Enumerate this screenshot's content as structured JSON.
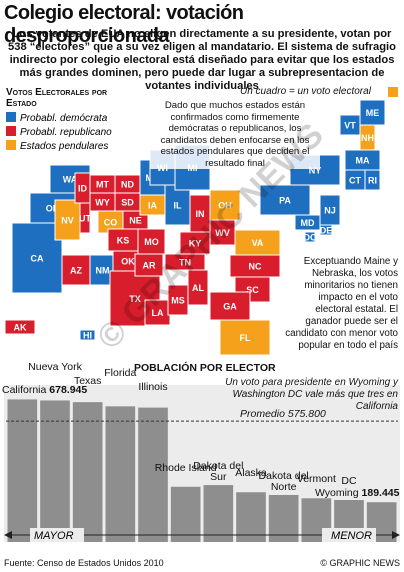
{
  "header": {
    "title": "Colegio electoral: votación desproporcionada",
    "intro": "Los votantes de EUA no eligen directamente a su presidente, votan por 538 “electores” que a su vez eligen al mandatario. El sistema de sufragio indirecto por colegio electoral está diseñado para evitar que los estados más grandes dominen, pero puede dar lugar a subrepresentacion de votantes individuales"
  },
  "legend": {
    "title": "Votos Electorales por Estado",
    "items": [
      {
        "label": "Probabl. demócrata",
        "color": "#1f6fc0"
      },
      {
        "label": "Probabl. republicano",
        "color": "#d81e2c"
      },
      {
        "label": "Estados pendulares",
        "color": "#f5a11c"
      }
    ],
    "square_note": "Un cuadro = un voto electoral"
  },
  "notes": {
    "swing": "Dado que muchos estados están confirmados como firmemente demócratas o republicanos, los candidatos deben enfocarse en los estados pendulares que deciden el resultado final",
    "maine": "Exceptuando Maine y Nebraska, los votos minoritarios no tienen impacto en el voto electoral estatal. El ganador puede ser el candidato con menor voto popular en todo el país"
  },
  "map": {
    "states": [
      {
        "label": "WA",
        "group": 0
      },
      {
        "label": "OR",
        "group": 0
      },
      {
        "label": "CA",
        "group": 0
      },
      {
        "label": "NV",
        "group": 2
      },
      {
        "label": "ID",
        "group": 1
      },
      {
        "label": "MT",
        "group": 1
      },
      {
        "label": "WY",
        "group": 1
      },
      {
        "label": "UT",
        "group": 1
      },
      {
        "label": "CO",
        "group": 2
      },
      {
        "label": "AZ",
        "group": 1
      },
      {
        "label": "NM",
        "group": 0
      },
      {
        "label": "ND",
        "group": 1
      },
      {
        "label": "SD",
        "group": 1
      },
      {
        "label": "NE",
        "group": 1
      },
      {
        "label": "KS",
        "group": 1
      },
      {
        "label": "OK",
        "group": 1
      },
      {
        "label": "TX",
        "group": 1
      },
      {
        "label": "MN",
        "group": 0
      },
      {
        "label": "IA",
        "group": 2
      },
      {
        "label": "MO",
        "group": 1
      },
      {
        "label": "AR",
        "group": 1
      },
      {
        "label": "LA",
        "group": 1
      },
      {
        "label": "WI",
        "group": 0
      },
      {
        "label": "IL",
        "group": 0
      },
      {
        "label": "MS",
        "group": 1
      },
      {
        "label": "AL",
        "group": 1
      },
      {
        "label": "TN",
        "group": 1
      },
      {
        "label": "KY",
        "group": 1
      },
      {
        "label": "IN",
        "group": 1
      },
      {
        "label": "MI",
        "group": 0
      },
      {
        "label": "OH",
        "group": 2
      },
      {
        "label": "WV",
        "group": 1
      },
      {
        "label": "VA",
        "group": 2
      },
      {
        "label": "NC",
        "group": 1
      },
      {
        "label": "SC",
        "group": 1
      },
      {
        "label": "GA",
        "group": 1
      },
      {
        "label": "FL",
        "group": 2
      },
      {
        "label": "PA",
        "group": 0
      },
      {
        "label": "NY",
        "group": 0
      },
      {
        "label": "NJ",
        "group": 0
      },
      {
        "label": "DE",
        "group": 0
      },
      {
        "label": "MD",
        "group": 0
      },
      {
        "label": "DC",
        "group": 0
      },
      {
        "label": "VT",
        "group": 0
      },
      {
        "label": "NH",
        "group": 2
      },
      {
        "label": "ME",
        "group": 0
      },
      {
        "label": "MA",
        "group": 0
      },
      {
        "label": "CT",
        "group": 0
      },
      {
        "label": "RI",
        "group": 0
      },
      {
        "label": "AK",
        "group": 1
      },
      {
        "label": "HI",
        "group": 0
      }
    ]
  },
  "chart_data": {
    "type": "bar",
    "title": "Población por Elector",
    "subtitle": "Un voto para presidente en Wyoming y Washington DC vale más que tres en California",
    "categories": [
      "California",
      "Nueva York",
      "Texas",
      "Florida",
      "Illinois",
      "Rhode Island",
      "Dakota del Sur",
      "Alaska",
      "Dakota del Norte",
      "Vermont",
      "DC",
      "Wyoming"
    ],
    "values": [
      678945,
      674000,
      666000,
      646000,
      640000,
      263000,
      271000,
      237000,
      224000,
      208000,
      200000,
      189445
    ],
    "value_labels": [
      "678.945",
      null,
      null,
      null,
      null,
      null,
      null,
      null,
      null,
      null,
      null,
      "189.445"
    ],
    "color": "#8e8e8e",
    "ylim": [
      0,
      700000
    ],
    "average": 575800,
    "average_title": "Promedio",
    "average_label": "575.800",
    "x_left": "MAYOR",
    "x_right": "MENOR"
  },
  "footer": {
    "source": "Fuente: Censo de Estados Unidos 2010",
    "credit": "© GRAPHIC NEWS",
    "watermark": "© GRAPHIC NEWS"
  }
}
